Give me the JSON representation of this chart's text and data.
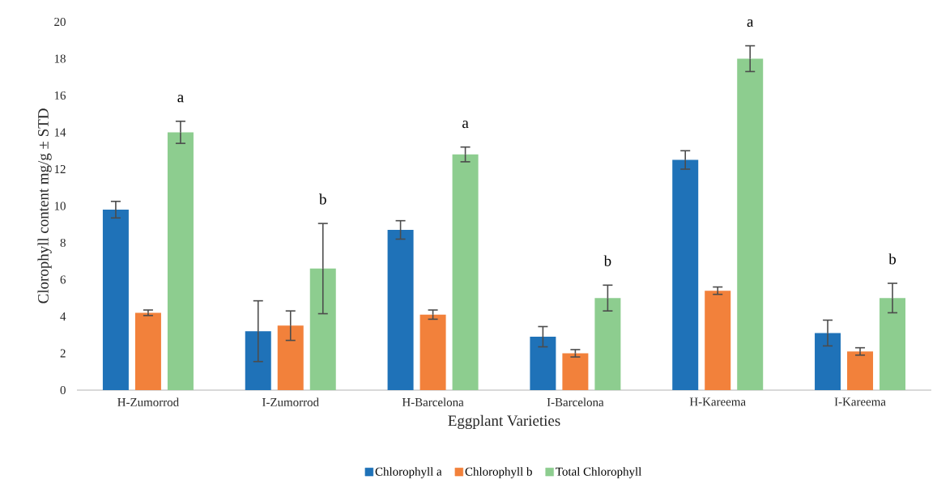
{
  "chart_data": {
    "type": "bar",
    "xlabel": "Eggplant Varieties",
    "ylabel": "Clorophyll content mg/g ± STD",
    "categories": [
      "H-Zumorrod",
      "I-Zumorrod",
      "H-Barcelona",
      "I-Barcelona",
      "H-Kareema",
      "I-Kareema"
    ],
    "series": [
      {
        "name": "Chlorophyll a",
        "color": "#1f72b8",
        "values": [
          9.8,
          3.2,
          8.7,
          2.9,
          12.5,
          3.1
        ],
        "errors": [
          0.45,
          1.65,
          0.5,
          0.55,
          0.5,
          0.7
        ]
      },
      {
        "name": "Chlorophyll b",
        "color": "#f2813b",
        "values": [
          4.2,
          3.5,
          4.1,
          2.0,
          5.4,
          2.1
        ],
        "errors": [
          0.15,
          0.8,
          0.25,
          0.2,
          0.2,
          0.2
        ]
      },
      {
        "name": "Total Chlorophyll",
        "color": "#8dcd8f",
        "values": [
          14.0,
          6.6,
          12.8,
          5.0,
          18.0,
          5.0
        ],
        "errors": [
          0.6,
          2.45,
          0.4,
          0.7,
          0.7,
          0.8
        ]
      }
    ],
    "annotations": [
      "a",
      "b",
      "a",
      "b",
      "a",
      "b"
    ],
    "ylim": [
      0,
      20
    ],
    "yticks": [
      0,
      2,
      4,
      6,
      8,
      10,
      12,
      14,
      16,
      18,
      20
    ],
    "legend": "bottom"
  }
}
